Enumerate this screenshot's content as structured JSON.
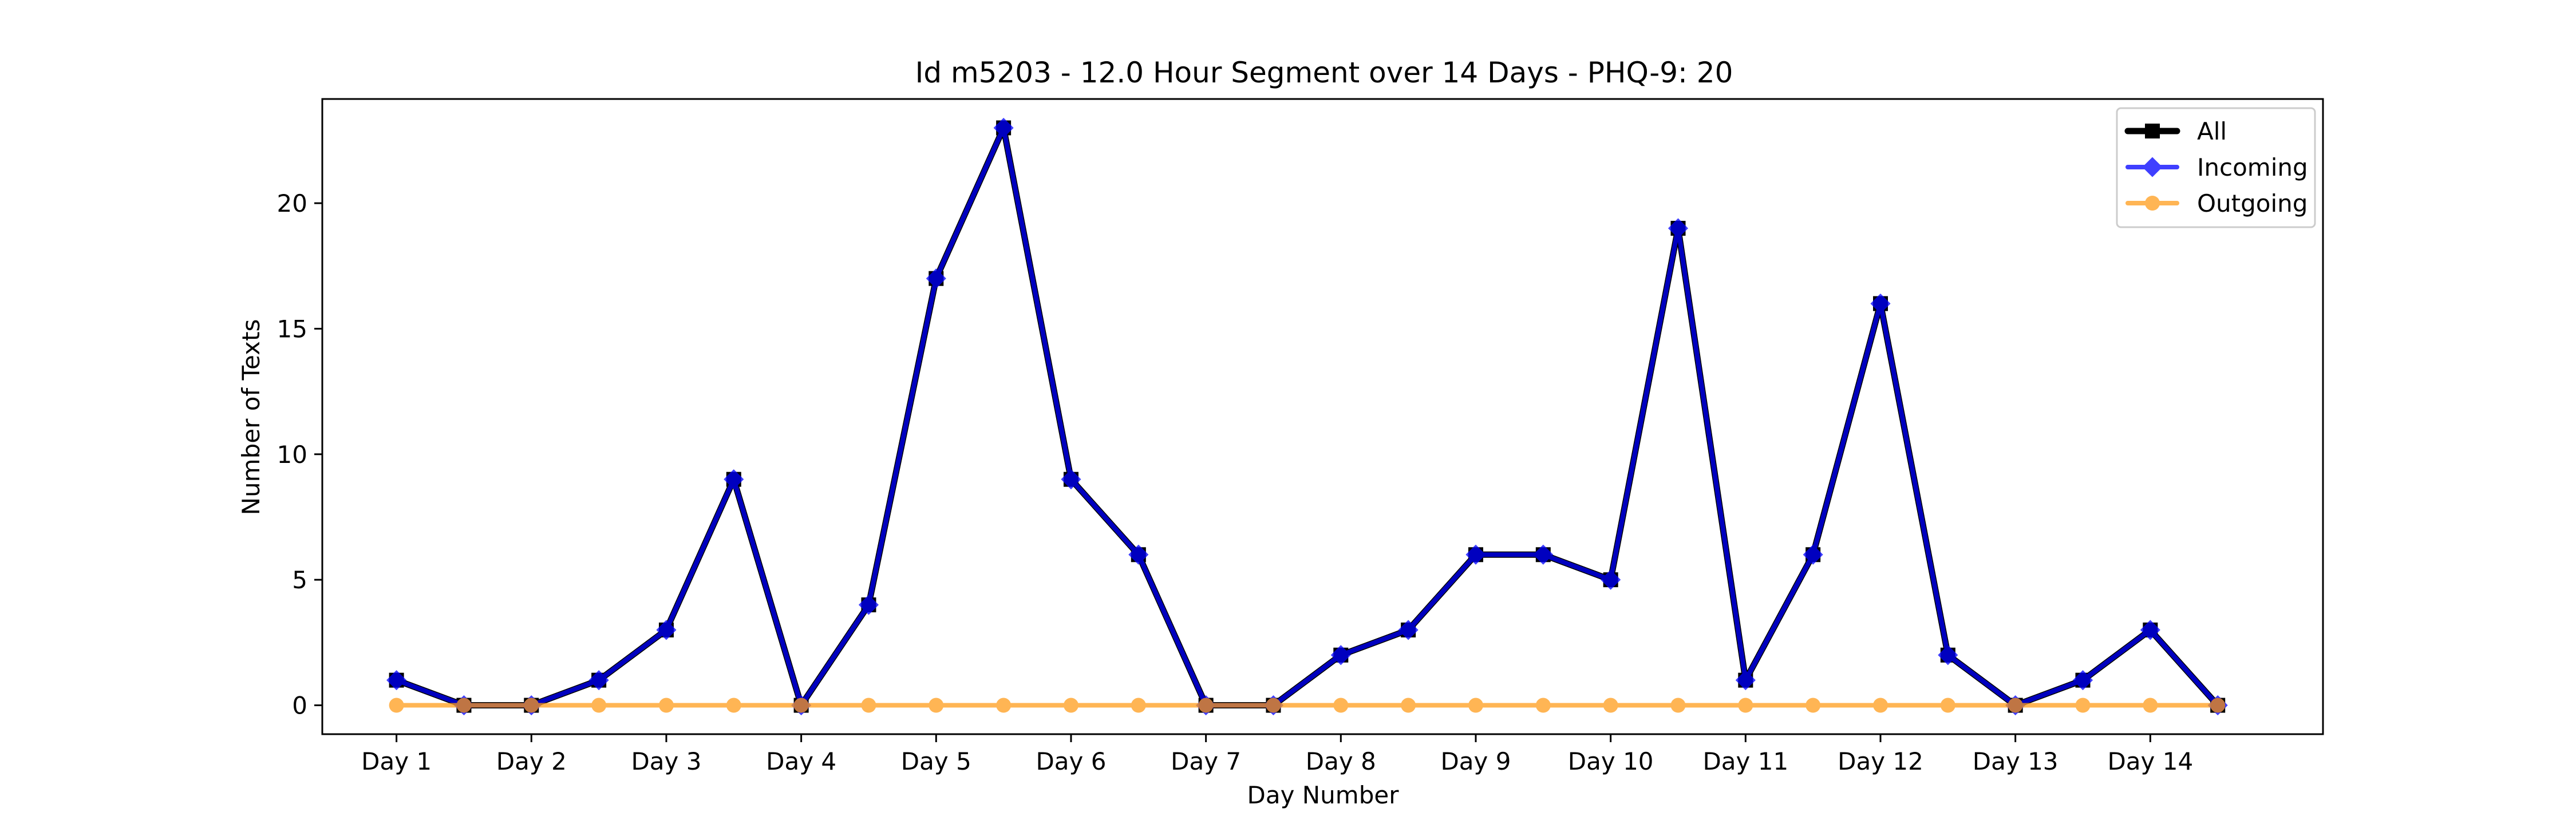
{
  "chart_data": {
    "type": "line",
    "title": "Id m5203 - 12.0 Hour Segment over 14 Days - PHQ-9: 20",
    "xlabel": "Day Number",
    "ylabel": "Number of Texts",
    "categories": [
      "Day 1",
      "Day 2",
      "Day 3",
      "Day 4",
      "Day 5",
      "Day 6",
      "Day 7",
      "Day 8",
      "Day 9",
      "Day 10",
      "Day 11",
      "Day 12",
      "Day 13",
      "Day 14"
    ],
    "x": [
      1,
      1.5,
      2,
      2.5,
      3,
      3.5,
      4,
      4.5,
      5,
      5.5,
      6,
      6.5,
      7,
      7.5,
      8,
      8.5,
      9,
      9.5,
      10,
      10.5,
      11,
      11.5,
      12,
      12.5,
      13,
      13.5,
      14,
      14.5
    ],
    "xticks": [
      1,
      2,
      3,
      4,
      5,
      6,
      7,
      8,
      9,
      10,
      11,
      12,
      13,
      14
    ],
    "xlim": [
      0.45,
      15.28
    ],
    "yticks": [
      0,
      5,
      10,
      15,
      20
    ],
    "ylim": [
      -1.15,
      24.15
    ],
    "grid": false,
    "legend_position": "top-right",
    "series": [
      {
        "name": "All",
        "color": "#000000",
        "marker": "square",
        "values": [
          1,
          0,
          0,
          1,
          3,
          9,
          0,
          4,
          17,
          23,
          9,
          6,
          0,
          0,
          2,
          3,
          6,
          6,
          5,
          19,
          1,
          6,
          16,
          2,
          0,
          1,
          3,
          0
        ]
      },
      {
        "name": "Incoming",
        "color": "#0000ff",
        "marker": "diamond",
        "values": [
          1,
          0,
          0,
          1,
          3,
          9,
          0,
          4,
          17,
          23,
          9,
          6,
          0,
          0,
          2,
          3,
          6,
          6,
          5,
          19,
          1,
          6,
          16,
          2,
          0,
          1,
          3,
          0
        ]
      },
      {
        "name": "Outgoing",
        "color": "#ff9d1c",
        "marker": "circle",
        "values": [
          0,
          0,
          0,
          0,
          0,
          0,
          0,
          0,
          0,
          0,
          0,
          0,
          0,
          0,
          0,
          0,
          0,
          0,
          0,
          0,
          0,
          0,
          0,
          0,
          0,
          0,
          0,
          0
        ]
      }
    ]
  }
}
